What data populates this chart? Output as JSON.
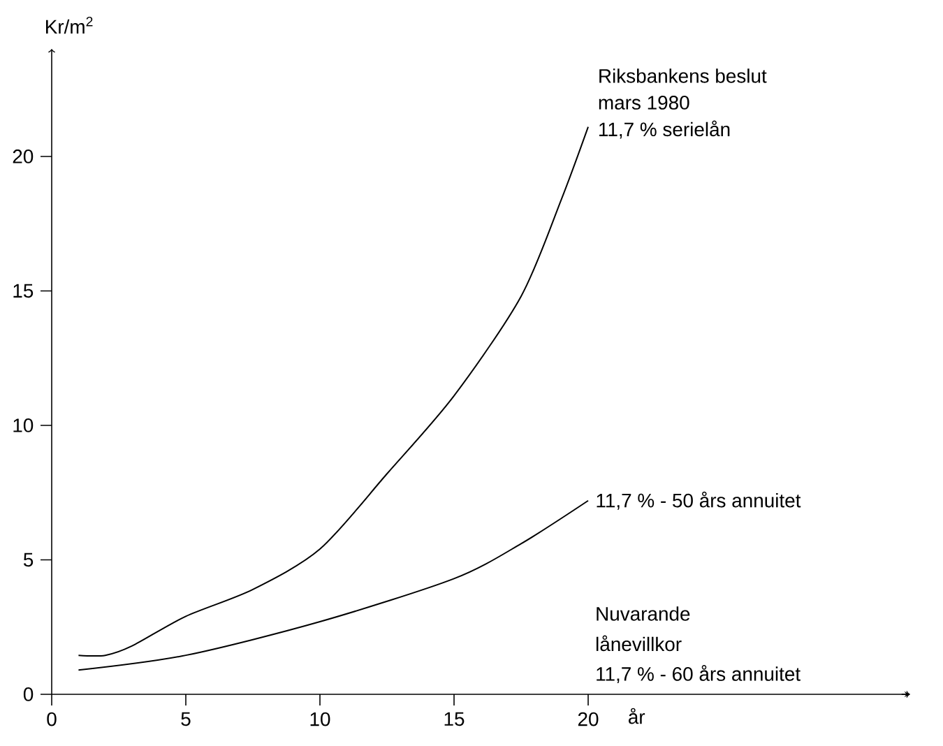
{
  "chart_data": {
    "type": "line",
    "xlabel": "år",
    "ylabel": "Kr/m$^{2}$",
    "xlim": [
      0,
      32
    ],
    "ylim": [
      0,
      24
    ],
    "xticks": [
      0,
      5,
      10,
      15,
      20
    ],
    "yticks": [
      0,
      5,
      10,
      15,
      20
    ],
    "grid": false,
    "marker": "none",
    "line_style": "solid",
    "series": [
      {
        "color": "#000000",
        "x": [
          1,
          2,
          3,
          5,
          7.5,
          10,
          12.5,
          15,
          17.5,
          19,
          20
        ],
        "values": [
          1.45,
          1.45,
          1.8,
          2.9,
          3.9,
          5.4,
          8.2,
          11.1,
          14.8,
          18.4,
          21.1
        ]
      },
      {
        "color": "#000000",
        "x": [
          1,
          5,
          10,
          15,
          17.5,
          20
        ],
        "values": [
          0.9,
          1.45,
          2.7,
          4.3,
          5.6,
          7.2
        ]
      }
    ],
    "annotations": [
      "Riksbankens beslut",
      "mars 1980",
      "11,7 % serielån",
      {
        "text": "11,7 % - 50 års annuitet",
        "x": 20,
        "y": 7.2
      },
      "Nuvarande",
      "lånevillkor",
      "11,7 % - 60 års annuitet"
    ]
  }
}
